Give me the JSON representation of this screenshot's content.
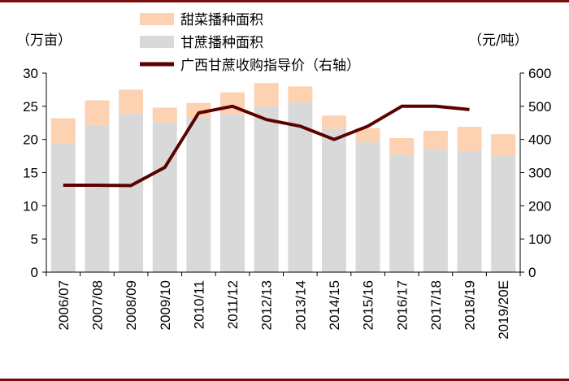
{
  "chart_data": {
    "type": "bar",
    "stacked": true,
    "categories": [
      "2006/07",
      "2007/08",
      "2008/09",
      "2009/10",
      "2010/11",
      "2011/12",
      "2012/13",
      "2013/14",
      "2014/15",
      "2015/16",
      "2016/17",
      "2017/18",
      "2018/19",
      "2019/20E"
    ],
    "left_unit": "（万亩）",
    "right_unit": "（元/吨）",
    "ylim_left": [
      0,
      30
    ],
    "yticks_left": [
      0,
      5,
      10,
      15,
      20,
      25,
      30
    ],
    "ylim_right": [
      0,
      600
    ],
    "yticks_right": [
      0,
      100,
      200,
      300,
      400,
      500,
      600
    ],
    "series": [
      {
        "name": "甜菜播种面积",
        "type": "bar",
        "color": "#fcd2b2",
        "values": [
          3.8,
          3.7,
          3.6,
          2.2,
          2.2,
          3.3,
          3.5,
          2.4,
          2.0,
          2.1,
          2.5,
          2.8,
          3.6,
          3.2
        ]
      },
      {
        "name": "甘蔗播种面积",
        "type": "bar",
        "color": "#d9d9d9",
        "values": [
          19.4,
          22.2,
          23.9,
          22.6,
          23.3,
          23.8,
          25.0,
          25.6,
          21.6,
          19.6,
          17.7,
          18.5,
          18.3,
          17.6
        ]
      },
      {
        "name": "广西甘蔗收购指导价（右轴）",
        "type": "line",
        "axis": "right",
        "color": "#5c0000",
        "values": [
          262,
          262,
          261,
          316,
          480,
          500,
          460,
          440,
          400,
          440,
          500,
          500,
          490,
          null
        ]
      }
    ],
    "legend_position": "top",
    "grid": false
  },
  "colors": {
    "frame": "#7a0c0c",
    "axis": "#000000"
  }
}
